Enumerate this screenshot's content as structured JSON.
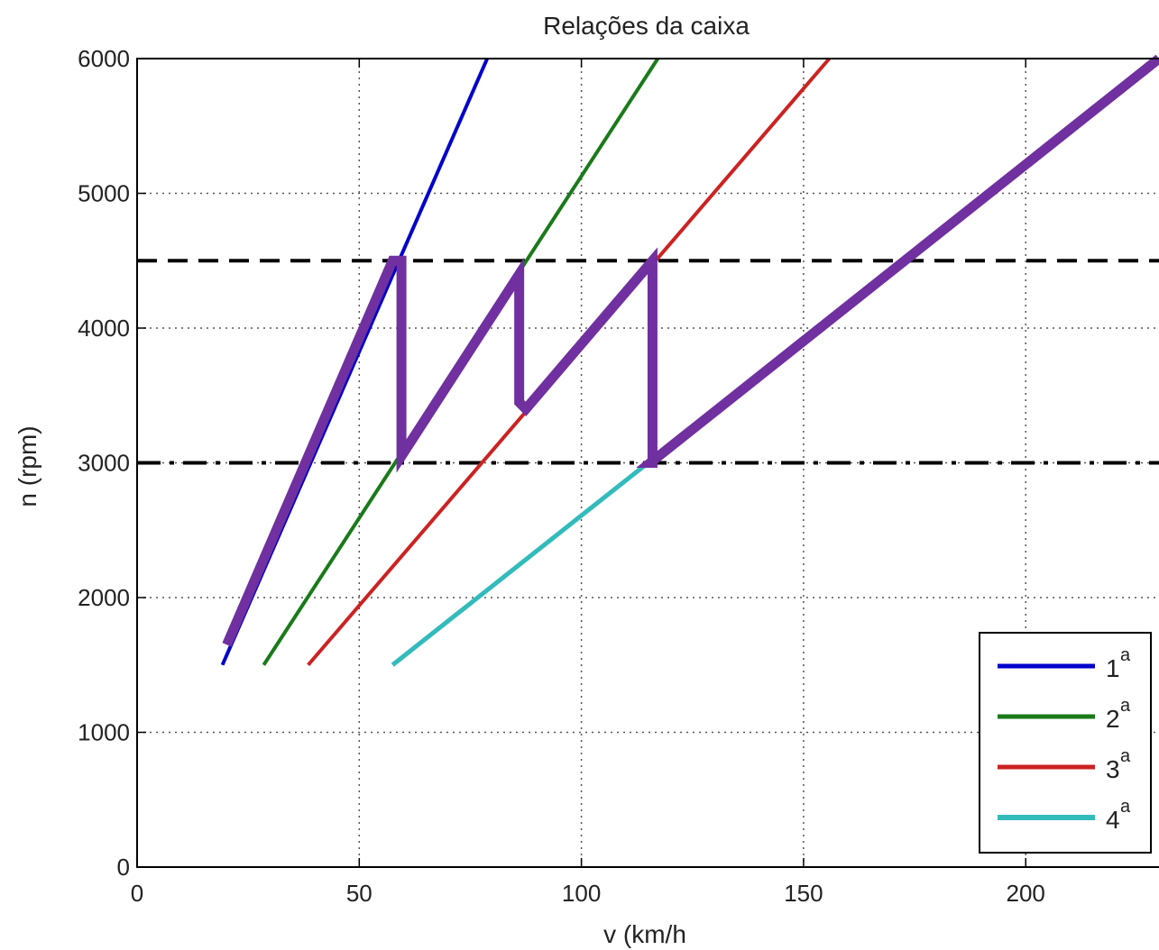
{
  "chart_data": {
    "type": "line",
    "title": "Relações da caixa",
    "xlabel": "v (km/h",
    "ylabel": "n (rpm)",
    "xlim": [
      0,
      230
    ],
    "ylim": [
      0,
      6000
    ],
    "x_ticks": [
      0,
      50,
      100,
      150,
      200
    ],
    "y_ticks": [
      0,
      1000,
      2000,
      3000,
      4000,
      5000,
      6000
    ],
    "grid": true,
    "legend_position": "bottom-right",
    "series": [
      {
        "name": "1",
        "sup": "a",
        "color": "#0000cc",
        "x": [
          19.2,
          78.8
        ],
        "y": [
          1500,
          6000
        ]
      },
      {
        "name": "2",
        "sup": "a",
        "color": "#1a7a1a",
        "x": [
          28.5,
          117.2
        ],
        "y": [
          1500,
          6000
        ]
      },
      {
        "name": "3",
        "sup": "a",
        "color": "#cc2222",
        "x": [
          38.5,
          155.8
        ],
        "y": [
          1500,
          6000
        ]
      },
      {
        "name": "4",
        "sup": "a",
        "color": "#33bbbb",
        "x": [
          57.5,
          230
        ],
        "y": [
          1500,
          6000
        ]
      }
    ],
    "reference_lines": [
      {
        "y": 4500,
        "style": "dashed",
        "color": "#000000"
      },
      {
        "y": 3000,
        "style": "dashdot",
        "color": "#000000"
      }
    ],
    "shift_path": {
      "color": "#7030a0",
      "x": [
        20.2,
        57.5,
        59.5,
        59.5,
        86.0,
        86.0,
        87.5,
        116.0,
        116.0,
        115.5,
        230
      ],
      "y": [
        1650,
        4500,
        4500,
        3050,
        4400,
        3450,
        3400,
        4500,
        3000,
        3000,
        6000
      ]
    }
  }
}
